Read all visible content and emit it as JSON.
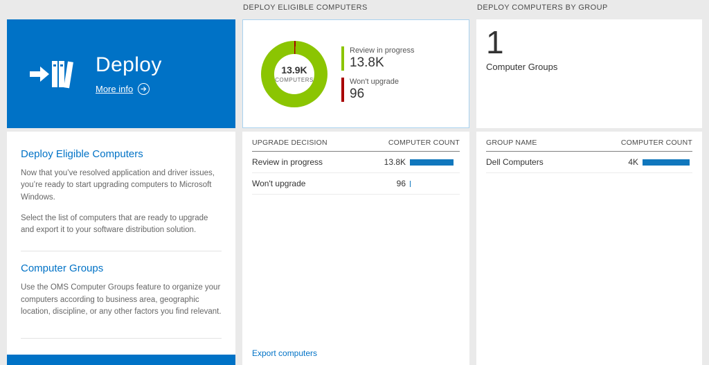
{
  "colors": {
    "accent": "#0072c6",
    "green": "#8bc502",
    "red": "#a80000",
    "bar": "#1077bd",
    "page_bg": "#eaeaea",
    "panel_bg": "#ffffff"
  },
  "left": {
    "tile": {
      "title": "Deploy",
      "more_info_label": "More info"
    },
    "panel": {
      "sections": [
        {
          "heading": "Deploy Eligible Computers",
          "paragraphs": [
            "Now that you’ve resolved application and driver issues, you’re ready to start upgrading computers to Microsoft Windows.",
            "Select the list of computers that are ready to upgrade and export it to your software distribution solution."
          ]
        },
        {
          "heading": "Computer Groups",
          "paragraphs": [
            "Use the OMS Computer Groups feature to organize your computers according to business area, geographic location, discipline, or any other factors you find relevant."
          ]
        }
      ]
    }
  },
  "middle": {
    "header": "DEPLOY ELIGIBLE COMPUTERS",
    "donut": {
      "center_value": "13.9K",
      "center_label": "COMPUTERS",
      "legend": [
        {
          "label": "Review in progress",
          "value": "13.8K",
          "color": "#8bc502"
        },
        {
          "label": "Won't upgrade",
          "value": "96",
          "color": "#a80000"
        }
      ]
    },
    "table": {
      "columns": [
        "UPGRADE DECISION",
        "COMPUTER COUNT"
      ],
      "rows": [
        {
          "label": "Review in progress",
          "value": "13.8K",
          "bar_pct": 87
        },
        {
          "label": "Won't upgrade",
          "value": "96",
          "bar_pct": 2
        }
      ]
    },
    "footer_link": "Export computers"
  },
  "right": {
    "header": "DEPLOY COMPUTERS BY GROUP",
    "summary": {
      "value": "1",
      "label": "Computer Groups"
    },
    "table": {
      "columns": [
        "GROUP NAME",
        "COMPUTER COUNT"
      ],
      "rows": [
        {
          "label": "Dell Computers",
          "value": "4K",
          "bar_pct": 95
        }
      ]
    }
  },
  "chart_data": [
    {
      "type": "pie",
      "title": "DEPLOY ELIGIBLE COMPUTERS",
      "center_value": "13.9K",
      "center_label": "COMPUTERS",
      "slices": [
        {
          "label": "Review in progress",
          "value": 13800,
          "color": "#8bc502"
        },
        {
          "label": "Won't upgrade",
          "value": 96,
          "color": "#a80000"
        }
      ],
      "legend_position": "right"
    },
    {
      "type": "table",
      "title": "UPGRADE DECISION / COMPUTER COUNT",
      "columns": [
        "UPGRADE DECISION",
        "COMPUTER COUNT"
      ],
      "rows": [
        [
          "Review in progress",
          "13.8K"
        ],
        [
          "Won't upgrade",
          "96"
        ]
      ]
    },
    {
      "type": "table",
      "title": "DEPLOY COMPUTERS BY GROUP",
      "columns": [
        "GROUP NAME",
        "COMPUTER COUNT"
      ],
      "rows": [
        [
          "Dell Computers",
          "4K"
        ]
      ]
    }
  ]
}
